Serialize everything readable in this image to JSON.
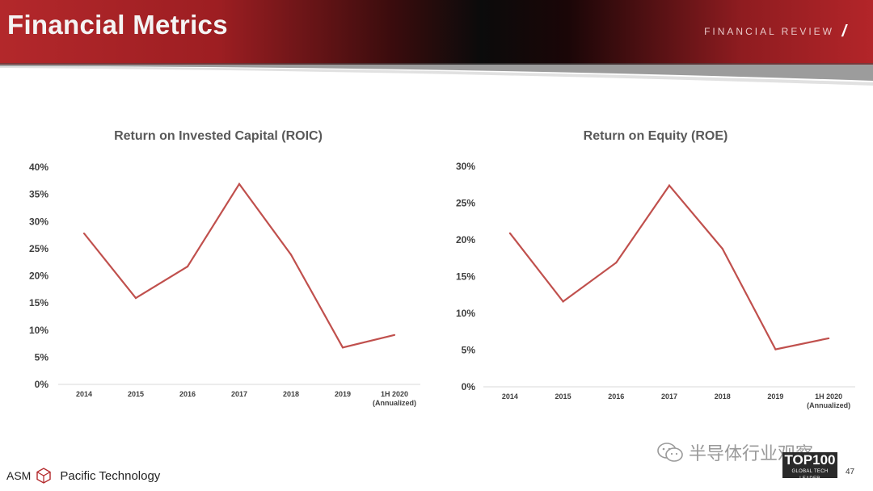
{
  "header": {
    "title": "Financial Metrics",
    "section": "FINANCIAL REVIEW",
    "slash": "/"
  },
  "colors": {
    "line": "#c0504d",
    "brand_red": "#b3282b",
    "axis": "#d9d9d9",
    "text": "#404040"
  },
  "chart_data": [
    {
      "type": "line",
      "title": "Return on Invested Capital (ROIC)",
      "categories": [
        "2014",
        "2015",
        "2016",
        "2017",
        "2018",
        "2019",
        "1H 2020\n(Annualized)"
      ],
      "values": [
        27.8,
        15.9,
        21.7,
        36.9,
        23.9,
        6.8,
        9.1
      ],
      "ylim": [
        0,
        40
      ],
      "yticks": [
        "0%",
        "5%",
        "10%",
        "15%",
        "20%",
        "25%",
        "30%",
        "35%",
        "40%"
      ],
      "grid": false,
      "xlabel": "",
      "ylabel": ""
    },
    {
      "type": "line",
      "title": "Return on Equity (ROE)",
      "categories": [
        "2014",
        "2015",
        "2016",
        "2017",
        "2018",
        "2019",
        "1H 2020\n(Annualized)"
      ],
      "values": [
        20.9,
        11.6,
        16.9,
        27.4,
        18.8,
        5.1,
        6.6
      ],
      "ylim": [
        0,
        30
      ],
      "yticks": [
        "0%",
        "5%",
        "10%",
        "15%",
        "20%",
        "25%",
        "30%"
      ],
      "grid": false,
      "xlabel": "",
      "ylabel": ""
    }
  ],
  "footer": {
    "company_prefix": "ASM",
    "company_name": "Pacific Technology",
    "watermark": "半导体行业观察",
    "badge_main": "TOP100",
    "badge_sub": "GLOBAL TECH LEADER",
    "page_number": "47"
  },
  "icons": {
    "logo": "asm-cube-logo",
    "watermark": "wechat-icon"
  }
}
